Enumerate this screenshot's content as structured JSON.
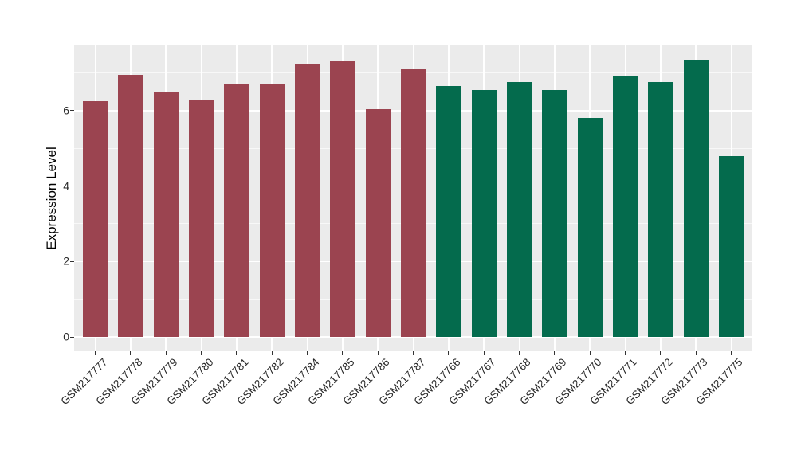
{
  "chart_data": {
    "type": "bar",
    "title": "",
    "xlabel": "",
    "ylabel": "Expression Level",
    "categories": [
      "GSM217777",
      "GSM217778",
      "GSM217779",
      "GSM217780",
      "GSM217781",
      "GSM217782",
      "GSM217784",
      "GSM217785",
      "GSM217786",
      "GSM217787",
      "GSM217766",
      "GSM217767",
      "GSM217768",
      "GSM217769",
      "GSM217770",
      "GSM217771",
      "GSM217772",
      "GSM217773",
      "GSM217775"
    ],
    "values": [
      6.25,
      6.95,
      6.5,
      6.3,
      6.7,
      6.7,
      7.25,
      7.3,
      6.05,
      7.1,
      6.65,
      6.55,
      6.75,
      6.55,
      5.8,
      6.9,
      6.75,
      7.35,
      4.8
    ],
    "groups": [
      "A",
      "A",
      "A",
      "A",
      "A",
      "A",
      "A",
      "A",
      "A",
      "A",
      "B",
      "B",
      "B",
      "B",
      "B",
      "B",
      "B",
      "B",
      "B"
    ],
    "group_colors": {
      "A": "#9B4450",
      "B": "#046B4D"
    },
    "yticks": [
      0,
      2,
      4,
      6
    ],
    "ytick_labels": [
      "0",
      "2",
      "4",
      "6"
    ],
    "minor_gridlines": [
      1,
      3,
      5,
      7
    ],
    "ylim": [
      0,
      7.73
    ],
    "grid": true,
    "legend_position": "none",
    "panel_background": "#EBEBEB",
    "gridline_color": "#ffffff"
  }
}
